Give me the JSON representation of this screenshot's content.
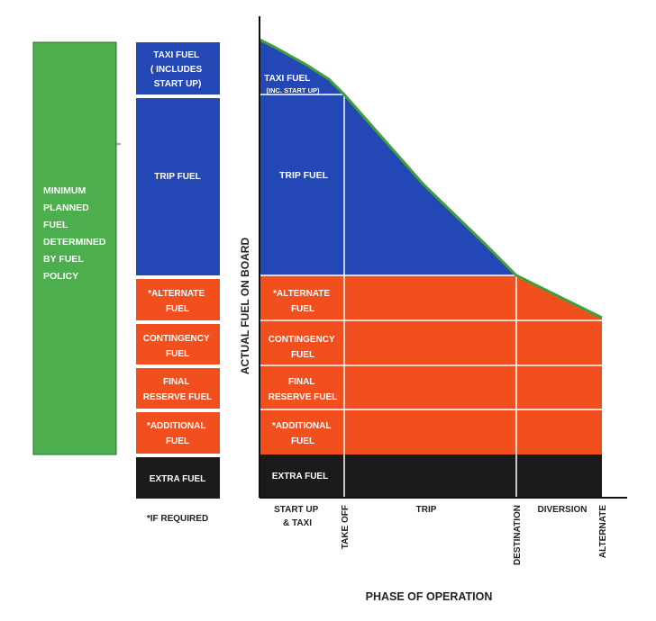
{
  "colors": {
    "green": "#4cae4c",
    "blue": "#2347b5",
    "orange": "#f24f1f",
    "black": "#1b1b1b",
    "white": "#ffffff",
    "text_dark": "#222222",
    "outline": "#3a8f2a"
  },
  "policy_box": {
    "lines": [
      "MINIMUM",
      "PLANNED",
      "FUEL",
      "DETERMINED",
      "BY FUEL",
      "POLICY"
    ]
  },
  "legend": {
    "taxi": [
      "TAXI FUEL",
      "( INCLUDES",
      "START UP)"
    ],
    "trip": [
      "TRIP FUEL"
    ],
    "alternate": [
      "*ALTERNATE",
      "FUEL"
    ],
    "contingency": [
      "CONTINGENCY",
      "FUEL"
    ],
    "final_reserve": [
      "FINAL",
      "RESERVE FUEL"
    ],
    "additional": [
      "*ADDITIONAL",
      "FUEL"
    ],
    "extra": [
      "EXTRA FUEL"
    ],
    "footnote": "*IF REQUIRED"
  },
  "chart": {
    "taxi": [
      "TAXI FUEL",
      "(INC. START UP)"
    ],
    "trip": [
      "TRIP FUEL"
    ],
    "alternate": [
      "*ALTERNATE",
      "FUEL"
    ],
    "contingency": [
      "CONTINGENCY",
      "FUEL"
    ],
    "final_reserve": [
      "FINAL",
      "RESERVE FUEL"
    ],
    "additional": [
      "*ADDITIONAL",
      "FUEL"
    ],
    "extra": [
      "EXTRA FUEL"
    ]
  },
  "axes": {
    "y_label": "ACTUAL FUEL ON BOARD",
    "x_label": "PHASE OF OPERATION",
    "phases": [
      "START UP",
      "& TAXI",
      "TRIP",
      "DIVERSION"
    ],
    "milestones": [
      "TAKE OFF",
      "DESTINATION",
      "ALTERNATE"
    ]
  }
}
